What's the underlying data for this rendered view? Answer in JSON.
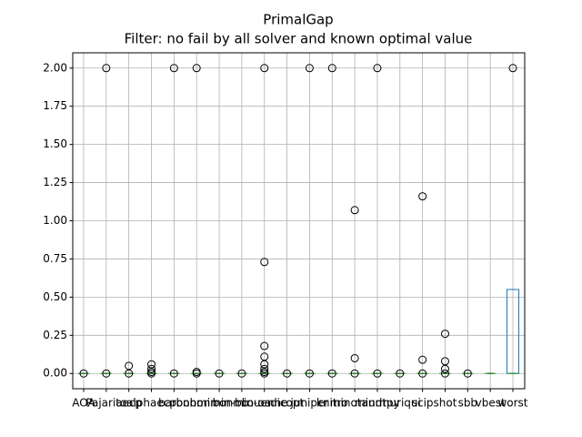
{
  "chart_data": {
    "type": "box",
    "title": "PrimalGap",
    "subtitle": "Filter: no fail by all solver and known optimal value",
    "ylim": [
      -0.1,
      2.1
    ],
    "yticks": [
      {
        "value": 0,
        "label": "0.00"
      },
      {
        "value": 0.25,
        "label": "0.25"
      },
      {
        "value": 0.5,
        "label": "0.50"
      },
      {
        "value": 0.75,
        "label": "0.75"
      },
      {
        "value": 1,
        "label": "1.00"
      },
      {
        "value": 1.25,
        "label": "1.25"
      },
      {
        "value": 1.5,
        "label": "1.50"
      },
      {
        "value": 1.75,
        "label": "1.75"
      },
      {
        "value": 2,
        "label": "2.00"
      }
    ],
    "grid": true,
    "box_color": "#1f77b4",
    "median_color": "#2ca02c",
    "boxes": [
      {
        "name": "AOA",
        "whislo": 0,
        "q1": 0,
        "median": 0,
        "q3": 0,
        "whishi": 0,
        "fliers": [
          0
        ]
      },
      {
        "name": "Pajarito",
        "whislo": 0,
        "q1": 0,
        "median": 0,
        "q3": 0,
        "whishi": 0,
        "fliers": [
          0,
          2
        ]
      },
      {
        "name": "aecp",
        "whislo": 0,
        "q1": 0,
        "median": 0,
        "q3": 0,
        "whishi": 0,
        "fliers": [
          0,
          0.05
        ]
      },
      {
        "name": "alphaecp",
        "whislo": 0,
        "q1": 0,
        "median": 0,
        "q3": 0,
        "whishi": 0,
        "fliers": [
          0,
          0.01,
          0.03,
          0.06
        ]
      },
      {
        "name": "baron",
        "whislo": 0,
        "q1": 0,
        "median": 0,
        "q3": 0,
        "whishi": 0,
        "fliers": [
          0,
          2
        ]
      },
      {
        "name": "bonmin",
        "whislo": 0,
        "q1": 0,
        "median": 0,
        "q3": 0,
        "whishi": 0,
        "fliers": [
          0,
          0.01,
          2
        ]
      },
      {
        "name": "bonmin-bb",
        "whislo": 0,
        "q1": 0,
        "median": 0,
        "q3": 0,
        "whishi": 0,
        "fliers": [
          0
        ]
      },
      {
        "name": "bonmin-oa",
        "whislo": 0,
        "q1": 0,
        "median": 0,
        "q3": 0,
        "whishi": 0,
        "fliers": [
          0
        ]
      },
      {
        "name": "couenne",
        "whislo": 0,
        "q1": 0,
        "median": 0,
        "q3": 0,
        "whishi": 0,
        "fliers": [
          0,
          0.01,
          0.03,
          0.06,
          0.11,
          0.18,
          0.73,
          2
        ]
      },
      {
        "name": "dicopt",
        "whislo": 0,
        "q1": 0,
        "median": 0,
        "q3": 0,
        "whishi": 0,
        "fliers": [
          0
        ]
      },
      {
        "name": "juniper",
        "whislo": 0,
        "q1": 0,
        "median": 0,
        "q3": 0,
        "whishi": 0,
        "fliers": [
          0,
          2
        ]
      },
      {
        "name": "knitro",
        "whislo": 0,
        "q1": 0,
        "median": 0,
        "q3": 0,
        "whishi": 0,
        "fliers": [
          0,
          2
        ]
      },
      {
        "name": "minotaur",
        "whislo": 0,
        "q1": 0,
        "median": 0,
        "q3": 0,
        "whishi": 0,
        "fliers": [
          0,
          0.1,
          1.07
        ]
      },
      {
        "name": "mindtpy",
        "whislo": 0,
        "q1": 0,
        "median": 0,
        "q3": 0,
        "whishi": 0,
        "fliers": [
          0,
          2
        ]
      },
      {
        "name": "muriqui",
        "whislo": 0,
        "q1": 0,
        "median": 0,
        "q3": 0,
        "whishi": 0,
        "fliers": [
          0
        ]
      },
      {
        "name": "scip",
        "whislo": 0,
        "q1": 0,
        "median": 0,
        "q3": 0,
        "whishi": 0,
        "fliers": [
          0,
          0.09,
          1.16
        ]
      },
      {
        "name": "shot",
        "whislo": 0,
        "q1": 0,
        "median": 0,
        "q3": 0,
        "whishi": 0,
        "fliers": [
          0,
          0.03,
          0.08,
          0.26
        ]
      },
      {
        "name": "sbb",
        "whislo": 0,
        "q1": 0,
        "median": 0,
        "q3": 0,
        "whishi": 0,
        "fliers": [
          0
        ]
      },
      {
        "name": "vbest",
        "whislo": 0,
        "q1": 0,
        "median": 0,
        "q3": 0,
        "whishi": 0,
        "fliers": []
      },
      {
        "name": "worst",
        "whislo": 0,
        "q1": 0,
        "median": 0,
        "q3": 0.55,
        "whishi": 0.55,
        "fliers": [
          2
        ]
      }
    ]
  }
}
